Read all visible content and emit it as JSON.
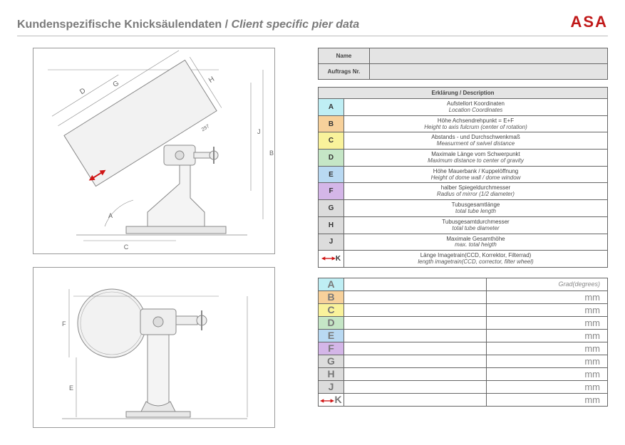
{
  "header": {
    "title_de": "Kundenspezifische Knicksäulendaten",
    "sep": " / ",
    "title_en": "Client specific pier data",
    "logo": "ASA"
  },
  "info": {
    "name_label": "Name",
    "order_label": "Auftrags Nr.",
    "name_value": "",
    "order_value": ""
  },
  "desc_header": "Erklärung / Description",
  "rows": [
    {
      "key": "A",
      "color": "#bfeef4",
      "de": "Aufstellort Koordinaten",
      "en": "Location Coordinates"
    },
    {
      "key": "B",
      "color": "#f7d19b",
      "de": "Höhe Achsendrehpunkt  = E+F",
      "en": "Height to axis fulcrum (center of rotation)"
    },
    {
      "key": "C",
      "color": "#f9f29b",
      "de": "Abstands - und Durchschwenkmaß",
      "en": "Measurment of swivel distance"
    },
    {
      "key": "D",
      "color": "#c5e6c6",
      "de": "Maximale Länge vom Schwerpunkt",
      "en": "Maximum distance to center of gravity"
    },
    {
      "key": "E",
      "color": "#b9d9f2",
      "de": "Höhe Mauerbank / Kuppelöffnung",
      "en": "Height of dome wall / dome window"
    },
    {
      "key": "F",
      "color": "#d4b6e8",
      "de": "halber Spiegeldurchmesser",
      "en": "Radius of mirror (1/2 diameter)"
    },
    {
      "key": "G",
      "color": "#dcdcdc",
      "de": "Tubusgesamtlänge",
      "en": "total tube length"
    },
    {
      "key": "H",
      "color": "#dcdcdc",
      "de": "Tubusgesamtdurchmesser",
      "en": "total tube diameter"
    },
    {
      "key": "J",
      "color": "#dcdcdc",
      "de": "Maximale Gesamthöhe",
      "en": "max. total heigth"
    },
    {
      "key": "K",
      "color": "#ffffff",
      "arrow": true,
      "de": "Länge Imagetrain(CCD, Korrektor, Filterrad)",
      "en": "length imagetrain(CCD, corrector, filter wheel)"
    }
  ],
  "inputs": [
    {
      "key": "A",
      "color": "#bfeef4",
      "unit": "Grad(degrees)"
    },
    {
      "key": "B",
      "color": "#f7d19b",
      "unit": "mm"
    },
    {
      "key": "C",
      "color": "#f9f29b",
      "unit": "mm"
    },
    {
      "key": "D",
      "color": "#c5e6c6",
      "unit": "mm"
    },
    {
      "key": "E",
      "color": "#b9d9f2",
      "unit": "mm"
    },
    {
      "key": "F",
      "color": "#d4b6e8",
      "unit": "mm"
    },
    {
      "key": "G",
      "color": "#dcdcdc",
      "unit": "mm"
    },
    {
      "key": "H",
      "color": "#dcdcdc",
      "unit": "mm"
    },
    {
      "key": "J",
      "color": "#dcdcdc",
      "unit": "mm"
    },
    {
      "key": "K",
      "color": "#ffffff",
      "arrow": true,
      "unit": "mm"
    }
  ],
  "drawing_labels": {
    "top": {
      "G": "G",
      "D": "D",
      "H": "H",
      "two97": "297",
      "A": "A",
      "C": "C",
      "J": "J",
      "B": "B"
    },
    "bottom": {
      "F": "F",
      "E": "E"
    }
  }
}
